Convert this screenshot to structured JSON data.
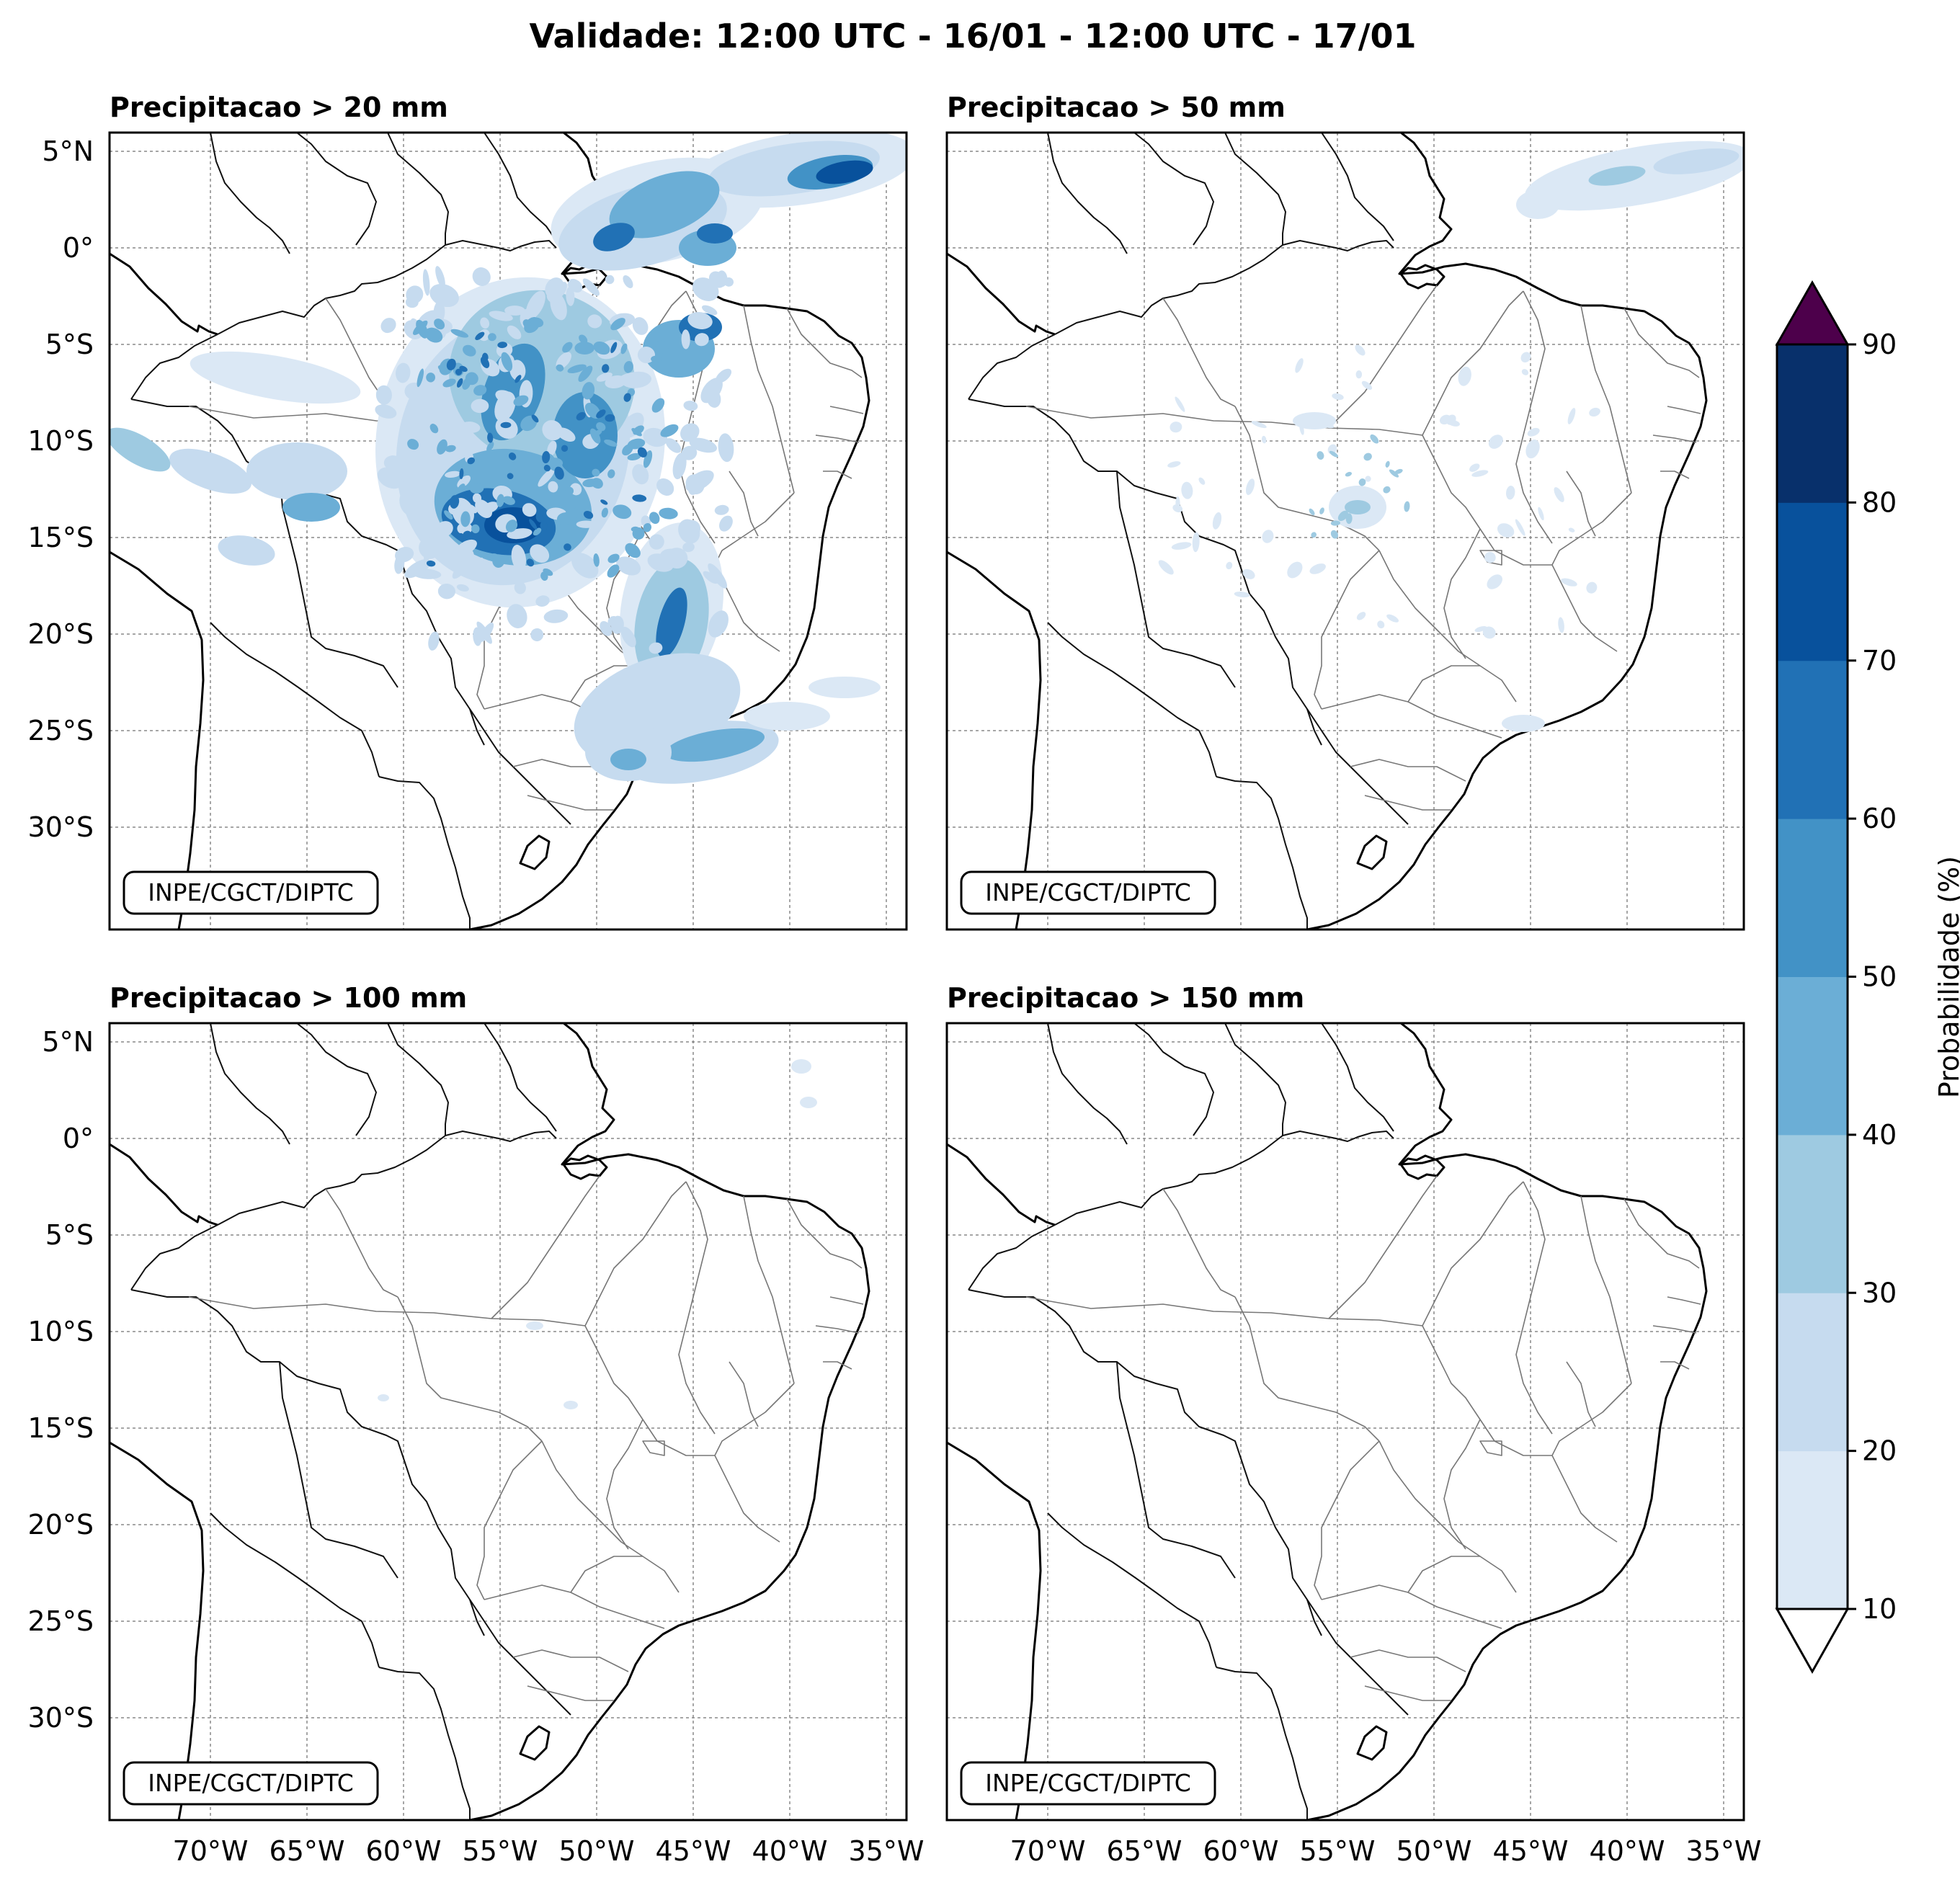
{
  "title": "Validade: 12:00 UTC - 16/01 - 12:00 UTC - 17/01",
  "credit": "INPE/CGCT/DIPTC",
  "lon_ticks": [
    "70°W",
    "65°W",
    "60°W",
    "55°W",
    "50°W",
    "45°W",
    "40°W",
    "35°W"
  ],
  "lat_ticks": [
    "5°N",
    "0°",
    "5°S",
    "10°S",
    "15°S",
    "20°S",
    "25°S",
    "30°S"
  ],
  "panels": [
    {
      "title": "Precipitacao > 20 mm"
    },
    {
      "title": "Precipitacao > 50 mm"
    },
    {
      "title": "Precipitacao > 100 mm"
    },
    {
      "title": "Precipitacao > 150 mm"
    }
  ],
  "colorbar": {
    "label": "Probabilidade (%)",
    "ticks": [
      "10",
      "20",
      "30",
      "40",
      "50",
      "60",
      "70",
      "80",
      "90"
    ],
    "colors": [
      "#dbe8f5",
      "#c6dbef",
      "#9ecae1",
      "#6baed6",
      "#4292c6",
      "#2171b5",
      "#08519c",
      "#08306b"
    ],
    "over_color": "#4d004b"
  }
}
